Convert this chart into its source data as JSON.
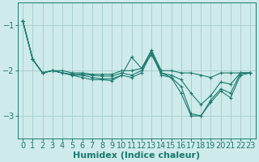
{
  "xlabel": "Humidex (Indice chaleur)",
  "ylabel": "",
  "bg_color": "#ceeaea",
  "line_color": "#1a7a6e",
  "grid_color": "#aacfcf",
  "x_values": [
    0,
    1,
    2,
    3,
    4,
    5,
    6,
    7,
    8,
    9,
    10,
    11,
    12,
    13,
    14,
    15,
    16,
    17,
    18,
    19,
    20,
    21,
    22,
    23
  ],
  "series": [
    [
      -0.9,
      -1.75,
      -2.05,
      -2.0,
      -2.0,
      -2.05,
      -2.05,
      -2.08,
      -2.08,
      -2.08,
      -2.0,
      -2.0,
      -1.95,
      -1.55,
      -2.0,
      -2.0,
      -2.05,
      -2.05,
      -2.1,
      -2.15,
      -2.05,
      -2.05,
      -2.05,
      -2.05
    ],
    [
      -0.9,
      -1.75,
      -2.05,
      -2.0,
      -2.05,
      -2.08,
      -2.08,
      -2.1,
      -2.12,
      -2.12,
      -2.05,
      -2.1,
      -2.0,
      -1.55,
      -2.05,
      -2.1,
      -2.2,
      -2.5,
      -2.75,
      -2.55,
      -2.25,
      -2.3,
      -2.05,
      -2.05
    ],
    [
      -0.9,
      -1.75,
      -2.05,
      -2.0,
      -2.05,
      -2.1,
      -2.1,
      -2.15,
      -2.18,
      -2.18,
      -2.1,
      -2.15,
      -2.05,
      -1.6,
      -2.1,
      -2.15,
      -2.35,
      -2.95,
      -3.0,
      -2.65,
      -2.4,
      -2.5,
      -2.05,
      -2.05
    ],
    [
      -0.9,
      -1.75,
      -2.05,
      -2.0,
      -2.05,
      -2.1,
      -2.15,
      -2.2,
      -2.2,
      -2.22,
      -2.1,
      -1.7,
      -1.95,
      -1.65,
      -2.05,
      -2.15,
      -2.5,
      -3.0,
      -3.0,
      -2.7,
      -2.45,
      -2.6,
      -2.1,
      -2.05
    ]
  ],
  "ylim": [
    -3.5,
    -0.5
  ],
  "yticks": [
    -3,
    -2,
    -1
  ],
  "xlim": [
    -0.5,
    23.5
  ],
  "tick_fontsize": 7,
  "xlabel_fontsize": 8
}
